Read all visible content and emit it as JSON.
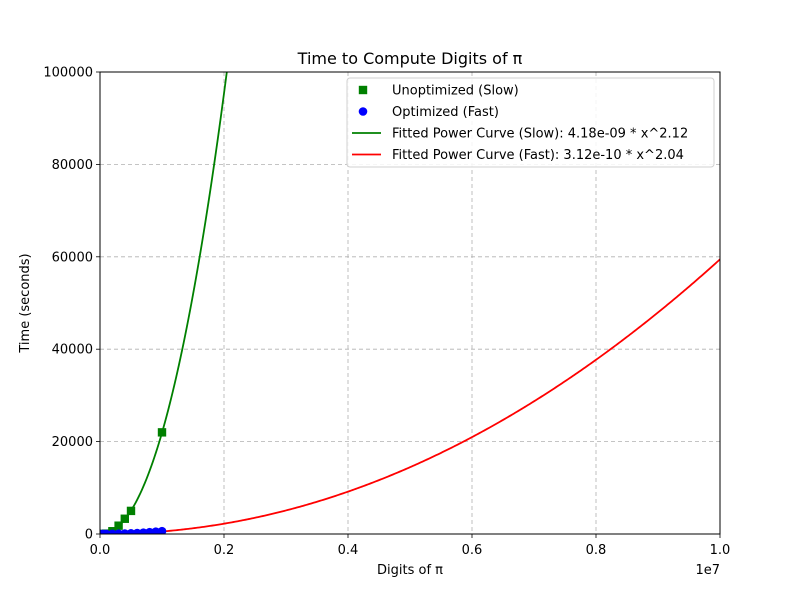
{
  "chart_data": {
    "type": "scatter",
    "title": "Time to Compute Digits of π",
    "xlabel": "Digits of π",
    "ylabel": "Time (seconds)",
    "x_offset_label": "1e7",
    "xlim": [
      0,
      10000000
    ],
    "ylim": [
      0,
      100000
    ],
    "x_ticks": [
      0,
      2000000,
      4000000,
      6000000,
      8000000,
      10000000
    ],
    "x_tick_labels": [
      "0.0",
      "0.2",
      "0.4",
      "0.6",
      "0.8",
      "1.0"
    ],
    "y_ticks": [
      0,
      20000,
      40000,
      60000,
      80000,
      100000
    ],
    "y_tick_labels": [
      "0",
      "20000",
      "40000",
      "60000",
      "80000",
      "100000"
    ],
    "grid": true,
    "legend_position": "upper right",
    "series": [
      {
        "name": "Unoptimized (Slow)",
        "kind": "scatter",
        "marker": "square",
        "color": "#008000",
        "x": [
          10000,
          50000,
          100000,
          200000,
          300000,
          400000,
          500000,
          1000000
        ],
        "y": [
          0,
          20,
          80,
          600,
          1800,
          3300,
          5000,
          22000
        ]
      },
      {
        "name": "Optimized (Fast)",
        "kind": "scatter",
        "marker": "circle",
        "color": "#0000ff",
        "x": [
          10000,
          50000,
          100000,
          200000,
          300000,
          400000,
          500000,
          600000,
          700000,
          800000,
          900000,
          1000000
        ],
        "y": [
          0,
          5,
          10,
          30,
          60,
          100,
          150,
          200,
          300,
          400,
          500,
          600
        ]
      },
      {
        "name": "Fitted Power Curve (Slow): 4.18e-09 * x^2.12",
        "kind": "line",
        "color": "#008000",
        "coef": 4.18e-09,
        "exponent": 2.12
      },
      {
        "name": "Fitted Power Curve (Fast): 3.12e-10 * x^2.04",
        "kind": "line",
        "color": "#ff0000",
        "coef": 3.12e-10,
        "exponent": 2.04
      }
    ]
  }
}
